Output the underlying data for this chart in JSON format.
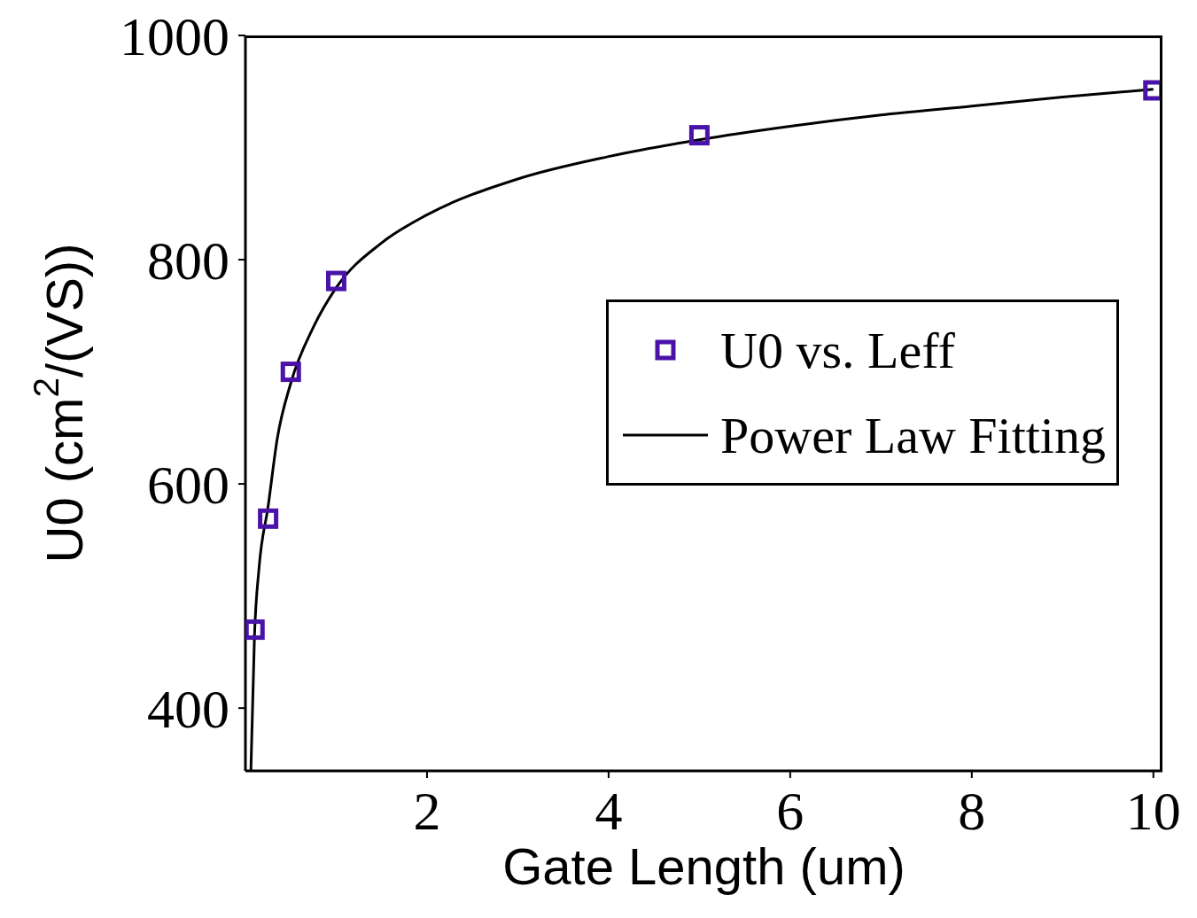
{
  "chart_data": {
    "type": "scatter",
    "xlabel": "Gate Length (um)",
    "ylabel": "U0 (cm$^{2}$/(VS))",
    "xlim": [
      0,
      10.1
    ],
    "ylim": [
      344,
      1000
    ],
    "xticks": [
      2,
      4,
      6,
      8,
      10
    ],
    "yticks": [
      400,
      600,
      800,
      1000
    ],
    "legend": "right",
    "series": [
      {
        "name": "U0 vs. Leff",
        "marker": "square",
        "color": "#4a12a8",
        "x": [
          0.1,
          0.25,
          0.5,
          1,
          5,
          10
        ],
        "values": [
          470,
          569,
          700,
          781,
          911,
          951
        ]
      },
      {
        "name": "Power Law Fitting",
        "type": "line",
        "marker": "none",
        "line_style": "solid",
        "color": "#000000",
        "x": [
          0.06,
          0.1,
          0.15,
          0.25,
          0.35,
          0.5,
          0.75,
          1,
          1.5,
          2,
          3,
          4,
          5,
          6,
          7,
          8,
          9,
          10
        ],
        "values": [
          344,
          465,
          525,
          580,
          640,
          690,
          740,
          775,
          815,
          840,
          872,
          892,
          907,
          919,
          929,
          937,
          945,
          952
        ]
      }
    ]
  }
}
